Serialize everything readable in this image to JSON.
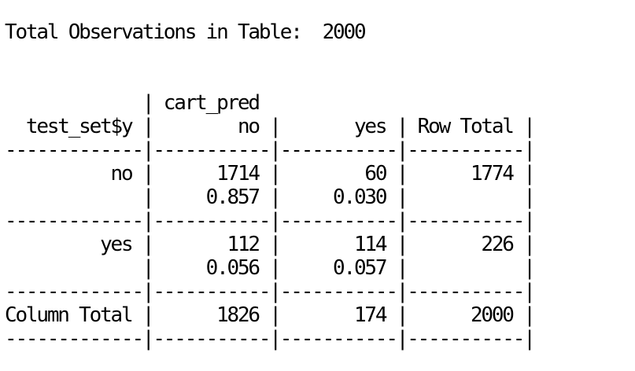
{
  "console": {
    "lines": [
      "Total Observations in Table:  2000",
      "",
      "",
      "             | cart_pred",
      "  test_set$y |        no |       yes | Row Total |",
      "-------------|-----------|-----------|-----------|",
      "          no |      1714 |        60 |      1774 |",
      "             |     0.857 |     0.030 |           |",
      "-------------|-----------|-----------|-----------|",
      "         yes |       112 |       114 |       226 |",
      "             |     0.056 |     0.057 |           |",
      "-------------|-----------|-----------|-----------|",
      "Column Total |      1826 |       174 |      2000 |",
      "-------------|-----------|-----------|-----------|"
    ]
  }
}
